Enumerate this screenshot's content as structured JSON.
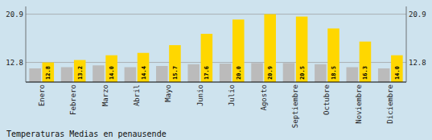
{
  "chart_data": {
    "type": "bar",
    "title": "Temperaturas Medias en penausende",
    "categories": [
      "Enero",
      "Febrero",
      "Marzo",
      "Abril",
      "Mayo",
      "Junio",
      "Julio",
      "Agosto",
      "Septiembre",
      "Octubre",
      "Noviembre",
      "Diciembre"
    ],
    "series": [
      {
        "color": "#BBBBBB",
        "values": [
          11.8,
          12.0,
          12.3,
          12.0,
          12.2,
          12.5,
          12.6,
          12.7,
          12.7,
          12.5,
          12.0,
          11.8
        ]
      },
      {
        "color": "#FFD700",
        "values": [
          12.8,
          13.2,
          14.0,
          14.4,
          15.7,
          17.6,
          20.0,
          20.9,
          20.5,
          18.5,
          16.3,
          14.0
        ],
        "value_labels": [
          "12.8",
          "13.2",
          "14.0",
          "14.4",
          "15.7",
          "17.6",
          "20.0",
          "20.9",
          "20.5",
          "18.5",
          "16.3",
          "14.0"
        ],
        "data_labels": true
      }
    ],
    "ylim": [
      9.5,
      22.2
    ],
    "yticks": [
      12.8,
      20.9
    ],
    "y2lim": [
      9.5,
      22.2
    ],
    "y2ticks": [
      12.8,
      20.9
    ],
    "grid": true
  }
}
